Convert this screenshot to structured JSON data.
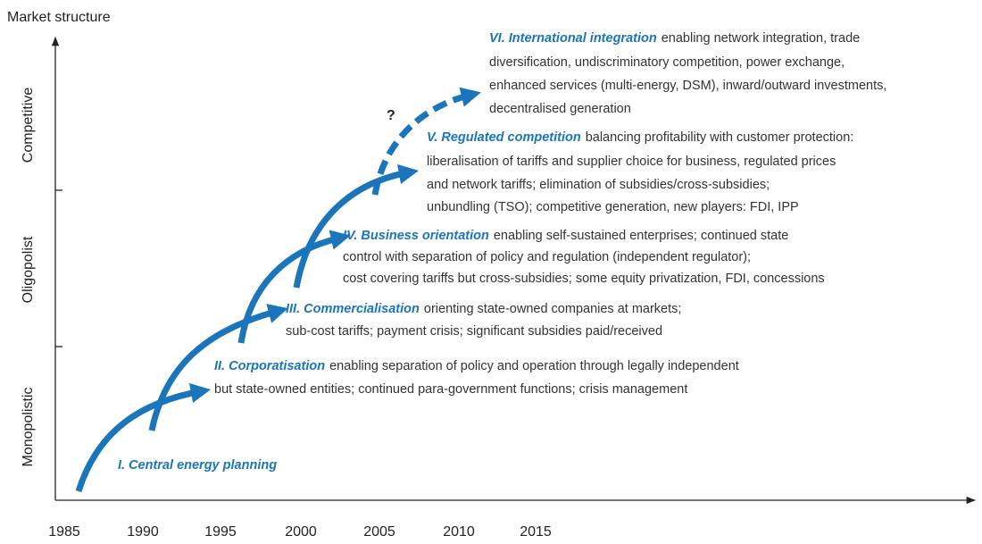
{
  "y_axis": {
    "title": "Market structure",
    "levels": [
      "Monopolistic",
      "Oligopolist",
      "Competitive"
    ]
  },
  "x_axis": {
    "ticks": [
      "1985",
      "1990",
      "1995",
      "2000",
      "2005",
      "2010",
      "2015"
    ]
  },
  "uncertainty_mark": "?",
  "stages": [
    {
      "title": "I. Central energy planning",
      "lines": []
    },
    {
      "title": "II. Corporatisation",
      "lines": [
        "enabling separation of policy and operation through legally independent",
        "but state-owned entities; continued para-government functions; crisis management"
      ]
    },
    {
      "title": "III. Commercialisation",
      "lines": [
        "orienting state-owned companies at markets;",
        "sub-cost tariffs; payment crisis; significant subsidies paid/received"
      ]
    },
    {
      "title": "IV. Business orientation",
      "lines": [
        "enabling self-sustained enterprises; continued state",
        "control with separation of policy and regulation (independent regulator);",
        "cost covering tariffs but cross-subsidies; some equity privatization, FDI, concessions"
      ]
    },
    {
      "title": "V. Regulated competition",
      "lines": [
        "balancing profitability with customer protection:",
        "liberalisation of tariffs and supplier choice for business, regulated prices",
        "and network tariffs; elimination of subsidies/cross-subsidies;",
        "unbundling (TSO); competitive generation, new players: FDI, IPP"
      ]
    },
    {
      "title": "VI. International integration",
      "lines": [
        "enabling network integration, trade",
        "diversification, undiscriminatory competition, power exchange,",
        "enhanced services (multi-energy, DSM), inward/outward investments,",
        "decentralised generation"
      ]
    }
  ]
}
